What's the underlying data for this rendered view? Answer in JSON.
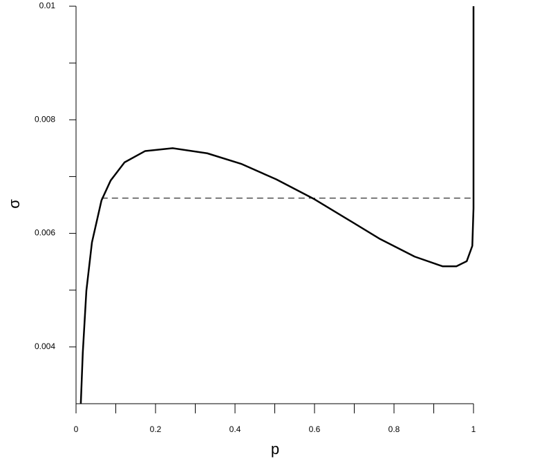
{
  "chart_data": {
    "type": "line",
    "x_label": "p",
    "y_label": "σ",
    "x": [
      0.012,
      0.017,
      0.026,
      0.04,
      0.064,
      0.087,
      0.122,
      0.174,
      0.243,
      0.33,
      0.417,
      0.504,
      0.6,
      0.678,
      0.765,
      0.852,
      0.922,
      0.957,
      0.983,
      0.997,
      1.0,
      1.0
    ],
    "values": [
      0.003,
      0.0039,
      0.00499,
      0.00584,
      0.00658,
      0.00693,
      0.00725,
      0.00745,
      0.0075,
      0.00741,
      0.00722,
      0.00695,
      0.0066,
      0.00627,
      0.0059,
      0.00559,
      0.00542,
      0.00542,
      0.00551,
      0.00578,
      0.00644,
      0.01
    ],
    "color": "#000000",
    "reference_line": {
      "value": 0.00662,
      "x": [
        0.064,
        1.0
      ],
      "color": "#000000"
    },
    "xlim": [
      0,
      1
    ],
    "ylim": [
      0.003,
      0.01
    ],
    "xticks": [
      0,
      0.2,
      0.4,
      0.6,
      0.8,
      1
    ],
    "minor_xticks": [
      0.1,
      0.3,
      0.5,
      0.7,
      0.9
    ],
    "yticks": [
      0.004,
      0.006,
      0.008,
      0.01
    ],
    "minor_yticks": [
      0.005,
      0.007,
      0.009
    ],
    "grid": false
  }
}
